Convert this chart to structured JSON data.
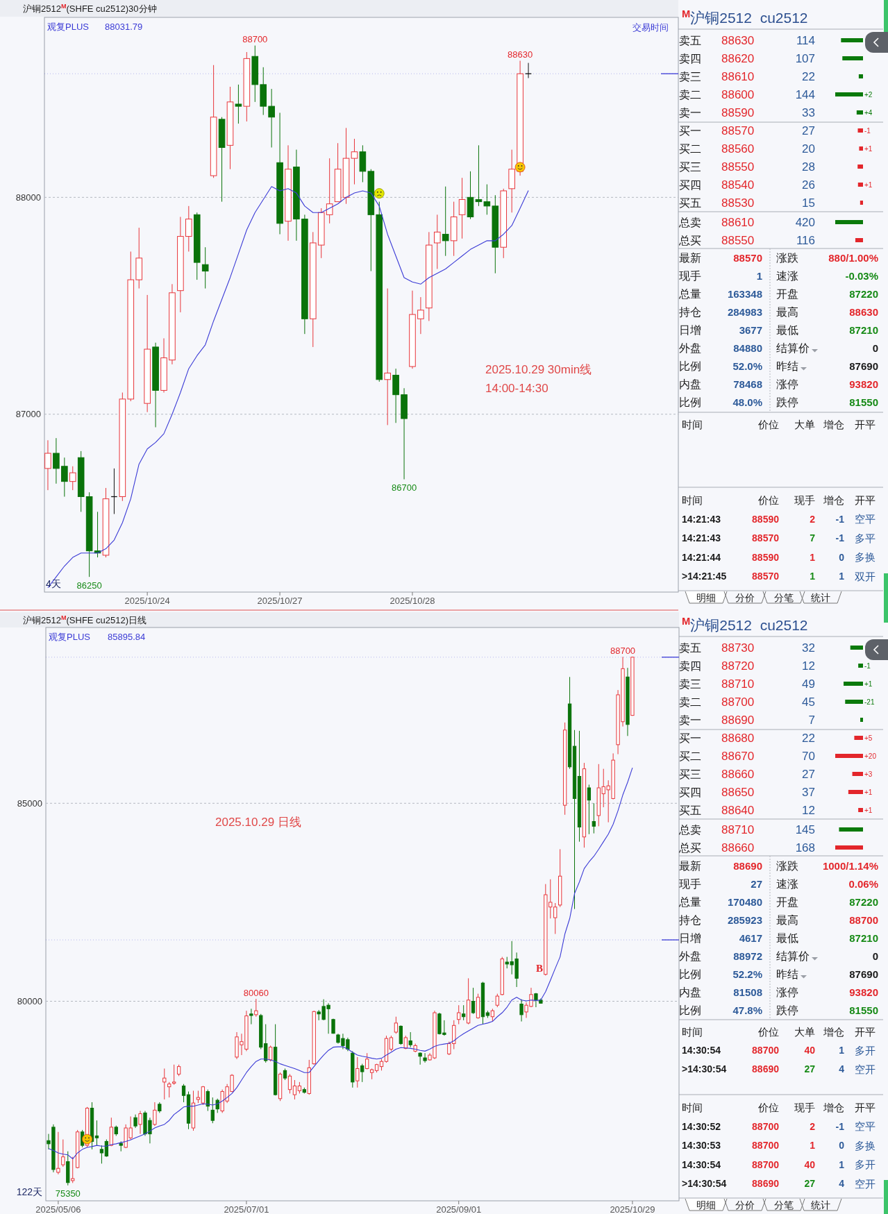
{
  "chart_data": [
    {
      "type": "candlestick",
      "title": "沪铜2512$^{M}$(SHFE cu2512)30分钟",
      "legend": "top left",
      "grid": "y",
      "ylim": [
        86180,
        88830
      ],
      "yticks": [
        87000,
        88000
      ],
      "categories": [
        null,
        null,
        null,
        null,
        null,
        null,
        null,
        null,
        null,
        null,
        null,
        null,
        "2025/10/24",
        null,
        null,
        null,
        null,
        null,
        null,
        null,
        null,
        null,
        null,
        null,
        null,
        null,
        null,
        null,
        "2025/10/27",
        null,
        null,
        null,
        null,
        null,
        null,
        null,
        null,
        null,
        null,
        null,
        null,
        null,
        null,
        null,
        "2025/10/28",
        null,
        null,
        null,
        null,
        null,
        null,
        null,
        null,
        null,
        null,
        null,
        null,
        null,
        null
      ],
      "ohlc": [
        [
          86750,
          86880,
          86650,
          86820
        ],
        [
          86820,
          86890,
          86680,
          86750
        ],
        [
          86760,
          86800,
          86620,
          86690
        ],
        [
          86690,
          86760,
          86650,
          86730
        ],
        [
          86800,
          86830,
          86550,
          86620
        ],
        [
          86620,
          86640,
          86250,
          86370
        ],
        [
          86370,
          86550,
          86340,
          86360
        ],
        [
          86350,
          86660,
          86340,
          86610
        ],
        [
          86620,
          86750,
          86540,
          86620
        ],
        [
          86620,
          87100,
          86600,
          87070
        ],
        [
          87070,
          87750,
          87060,
          87620
        ],
        [
          87620,
          87860,
          87580,
          87720
        ],
        [
          87050,
          87550,
          87010,
          87300
        ],
        [
          87310,
          87330,
          86940,
          87110
        ],
        [
          87110,
          87350,
          87100,
          87260
        ],
        [
          87250,
          87600,
          87230,
          87560
        ],
        [
          87570,
          87910,
          87470,
          87820
        ],
        [
          87820,
          87960,
          87750,
          87900
        ],
        [
          87920,
          87930,
          87620,
          87700
        ],
        [
          87690,
          87770,
          87580,
          87660
        ],
        [
          88100,
          88610,
          88090,
          88370
        ],
        [
          88360,
          88370,
          87980,
          88230
        ],
        [
          88240,
          88510,
          88130,
          88440
        ],
        [
          88430,
          88520,
          88340,
          88420
        ],
        [
          88420,
          88670,
          88350,
          88640
        ],
        [
          88650,
          88700,
          88440,
          88520
        ],
        [
          88520,
          88600,
          88380,
          88420
        ],
        [
          88420,
          88500,
          88230,
          88370
        ],
        [
          88160,
          88390,
          87830,
          87880
        ],
        [
          87890,
          88240,
          87800,
          88130
        ],
        [
          88140,
          88220,
          87800,
          87900
        ],
        [
          87900,
          87920,
          87370,
          87440
        ],
        [
          87440,
          87840,
          87310,
          87790
        ],
        [
          87780,
          87950,
          87720,
          87930
        ],
        [
          87920,
          88180,
          87880,
          87970
        ],
        [
          87980,
          88250,
          87980,
          88130
        ],
        [
          88000,
          88320,
          87970,
          88180
        ],
        [
          88180,
          88270,
          88060,
          88210
        ],
        [
          88210,
          88240,
          88070,
          88120
        ],
        [
          88120,
          88130,
          87660,
          87920
        ],
        [
          87920,
          87980,
          87150,
          87160
        ],
        [
          87160,
          87580,
          86950,
          87190
        ],
        [
          87180,
          87210,
          86960,
          87090
        ],
        [
          87090,
          87120,
          86700,
          86980
        ],
        [
          87220,
          87570,
          87210,
          87460
        ],
        [
          87440,
          87540,
          87370,
          87480
        ],
        [
          87490,
          87840,
          87430,
          87780
        ],
        [
          87790,
          87920,
          87670,
          87840
        ],
        [
          87830,
          88050,
          87730,
          87800
        ],
        [
          87800,
          87980,
          87730,
          87910
        ],
        [
          87920,
          88090,
          87810,
          87990
        ],
        [
          88000,
          88120,
          87900,
          87910
        ],
        [
          87990,
          88240,
          87960,
          87980
        ],
        [
          87980,
          88060,
          87920,
          87960
        ],
        [
          87960,
          88010,
          87650,
          87770
        ],
        [
          87770,
          88040,
          87720,
          88030
        ],
        [
          88040,
          88220,
          87930,
          88130
        ],
        [
          88120,
          88630,
          88100,
          88570
        ],
        [
          88570,
          88620,
          88550,
          88570
        ]
      ],
      "series": [
        {
          "name": "观复PLUS",
          "type": "line",
          "color": "#3b3bd6",
          "values": [
            86200,
            86250,
            86300,
            86340,
            86360,
            86360,
            86360,
            86380,
            86420,
            86500,
            86610,
            86770,
            86840,
            86870,
            86910,
            87000,
            87100,
            87210,
            87270,
            87320,
            87430,
            87530,
            87630,
            87740,
            87850,
            87930,
            87990,
            88050,
            88030,
            88040,
            88020,
            87960,
            87930,
            87930,
            87950,
            87970,
            88000,
            88020,
            88030,
            88020,
            87960,
            87830,
            87730,
            87630,
            87610,
            87600,
            87630,
            87650,
            87670,
            87700,
            87730,
            87760,
            87780,
            87800,
            87800,
            87830,
            87870,
            87950,
            88031.79
          ]
        }
      ],
      "ref_lines": [
        {
          "axis": "y",
          "value": 88570,
          "color": "#3b3bd6"
        }
      ],
      "annotations": [
        "88031.79",
        "交易时间",
        "2025.10.29 30min线\n14:00-14:30",
        "4天",
        {
          "text": "88700",
          "y": 88700
        },
        {
          "text": "88630",
          "y": 88630
        },
        {
          "text": "86700",
          "y": 86700
        },
        {
          "text": "86250",
          "y": 86250
        }
      ]
    },
    {
      "type": "bar",
      "orientation": "horizontal",
      "title": "$^{M}$沪铜2512  cu2512",
      "categories": [
        "卖五",
        "卖四",
        "卖三",
        "卖二",
        "卖一",
        "买一",
        "买二",
        "买三",
        "买四",
        "买五"
      ],
      "y2_categories": [
        "88630",
        "88620",
        "88610",
        "88600",
        "88590",
        "88570",
        "88560",
        "88550",
        "88540",
        "88530"
      ],
      "values": [
        114,
        107,
        22,
        144,
        33,
        27,
        20,
        28,
        26,
        15
      ],
      "colors": [
        "#0b7a0b",
        "#0b7a0b",
        "#0b7a0b",
        "#0b7a0b",
        "#0b7a0b",
        "#e3262b",
        "#e3262b",
        "#e3262b",
        "#e3262b",
        "#e3262b"
      ],
      "data_labels": true,
      "annotations": [
        "+2",
        "+4",
        "-1",
        "+1",
        "+1"
      ]
    },
    {
      "type": "bar",
      "orientation": "horizontal",
      "categories": [
        "总卖",
        "总买"
      ],
      "y2_categories": [
        "88610",
        "88550"
      ],
      "values": [
        420,
        116
      ],
      "colors": [
        "#0b7a0b",
        "#e3262b"
      ],
      "data_labels": true
    },
    {
      "type": "other",
      "annotations": [
        "最新",
        "88570",
        "涨跌",
        "880/1.00%",
        "现手",
        "1",
        "速涨",
        "-0.03%",
        "总量",
        "163348",
        "开盘",
        "87220",
        "持仓",
        "284983",
        "最高",
        "88630",
        "日增",
        "3677",
        "最低",
        "87210",
        "外盘",
        "84880",
        "结算价",
        "0",
        "比例",
        "52.0%",
        "昨结",
        "87690",
        "内盘",
        "78468",
        "涨停",
        "93820",
        "比例",
        "48.0%",
        "跌停",
        "81550"
      ]
    },
    {
      "type": "other",
      "annotations": [
        "时间",
        "价位",
        "大单",
        "增仓",
        "开平"
      ]
    },
    {
      "type": "other",
      "annotations": [
        "时间",
        "价位",
        "现手",
        "增仓",
        "开平",
        "14:21:43",
        "88590",
        "2",
        "-1",
        "空平",
        "14:21:43",
        "88570",
        "7",
        "-1",
        "多平",
        "14:21:44",
        "88590",
        "1",
        "0",
        "多换",
        ">14:21:45",
        "88570",
        "1",
        "1",
        "双开"
      ]
    },
    {
      "type": "other",
      "annotations": [
        "明细",
        "分价",
        "分笔",
        "统计"
      ]
    },
    {
      "type": "candlestick",
      "title": "沪铜2512$^{M}$(SHFE cu2512)日线",
      "legend": "top left",
      "grid": "y",
      "ylim": [
        74960,
        89440
      ],
      "yticks": [
        80000,
        85000
      ],
      "categories": [
        null,
        null,
        "2025/05/06",
        null,
        null,
        null,
        null,
        null,
        null,
        null,
        null,
        null,
        null,
        null,
        null,
        null,
        null,
        null,
        null,
        null,
        null,
        null,
        null,
        null,
        null,
        null,
        null,
        null,
        null,
        null,
        null,
        null,
        null,
        null,
        null,
        null,
        null,
        null,
        null,
        null,
        null,
        "2025/07/01",
        null,
        null,
        null,
        null,
        null,
        null,
        null,
        null,
        null,
        null,
        null,
        null,
        null,
        null,
        null,
        null,
        null,
        null,
        null,
        null,
        null,
        null,
        null,
        null,
        null,
        null,
        null,
        null,
        null,
        null,
        null,
        null,
        null,
        null,
        null,
        null,
        null,
        null,
        null,
        null,
        null,
        null,
        null,
        "2025/09/01",
        null,
        null,
        null,
        null,
        null,
        null,
        null,
        null,
        null,
        null,
        null,
        null,
        null,
        null,
        null,
        null,
        null,
        null,
        null,
        null,
        null,
        null,
        null,
        null,
        null,
        null,
        null,
        null,
        null,
        null,
        null,
        null,
        null,
        null,
        null,
        "2025/10/29"
      ],
      "ohlc": [
        [
          76480,
          76650,
          76260,
          76400
        ],
        [
          76820,
          76890,
          75680,
          75750
        ],
        [
          75680,
          76700,
          75630,
          75780
        ],
        [
          75870,
          76510,
          75820,
          76070
        ],
        [
          75950,
          76210,
          75350,
          75420
        ],
        [
          75470,
          76070,
          75410,
          75520
        ],
        [
          75800,
          76750,
          75780,
          76700
        ],
        [
          76700,
          76750,
          76310,
          76360
        ],
        [
          76360,
          77330,
          76310,
          77300
        ],
        [
          77300,
          77450,
          76260,
          76460
        ],
        [
          76600,
          76990,
          76360,
          76550
        ],
        [
          76260,
          76360,
          75900,
          76170
        ],
        [
          76460,
          76510,
          76070,
          76090
        ],
        [
          76360,
          77060,
          76340,
          76820
        ],
        [
          76820,
          76860,
          76600,
          76650
        ],
        [
          76410,
          76460,
          76210,
          76360
        ],
        [
          76310,
          76890,
          76290,
          76800
        ],
        [
          76550,
          77090,
          76510,
          76800
        ],
        [
          77060,
          77140,
          76800,
          76850
        ],
        [
          76890,
          77230,
          76650,
          77160
        ],
        [
          77180,
          77230,
          76600,
          76650
        ],
        [
          76990,
          77060,
          76410,
          76650
        ],
        [
          76890,
          77450,
          76850,
          77250
        ],
        [
          77400,
          77450,
          77180,
          77230
        ],
        [
          77960,
          78300,
          77520,
          78060
        ],
        [
          77840,
          77960,
          77570,
          77910
        ],
        [
          77930,
          78400,
          77890,
          77960
        ],
        [
          78160,
          78400,
          78110,
          78350
        ],
        [
          77860,
          77910,
          77450,
          77620
        ],
        [
          77640,
          77720,
          76770,
          76920
        ],
        [
          76800,
          77740,
          76730,
          77430
        ],
        [
          77520,
          77740,
          77430,
          77570
        ],
        [
          77430,
          77860,
          77380,
          77840
        ],
        [
          77720,
          77770,
          77230,
          77350
        ],
        [
          77250,
          77570,
          76920,
          76990
        ],
        [
          77500,
          77540,
          77180,
          77280
        ],
        [
          77230,
          77770,
          77180,
          77720
        ],
        [
          77480,
          77910,
          77430,
          77840
        ],
        [
          77720,
          78160,
          77710,
          78130
        ],
        [
          78590,
          79220,
          78540,
          79100
        ],
        [
          78900,
          79180,
          78640,
          78980
        ],
        [
          78790,
          79760,
          78740,
          79630
        ],
        [
          79680,
          79810,
          79420,
          79640
        ],
        [
          79660,
          80060,
          79610,
          79760
        ],
        [
          79640,
          79680,
          78790,
          78840
        ],
        [
          78930,
          79420,
          78450,
          78500
        ],
        [
          78520,
          78880,
          78480,
          78840
        ],
        [
          78840,
          79420,
          77620,
          77640
        ],
        [
          77540,
          78200,
          77480,
          78160
        ],
        [
          78250,
          78300,
          78010,
          78060
        ],
        [
          77770,
          78160,
          77670,
          78110
        ],
        [
          77640,
          78010,
          77520,
          77860
        ],
        [
          77740,
          77960,
          77670,
          77860
        ],
        [
          77770,
          77820,
          77670,
          77700
        ],
        [
          77670,
          78520,
          77640,
          78320
        ],
        [
          78420,
          79760,
          78400,
          79740
        ],
        [
          79730,
          79780,
          79520,
          79680
        ],
        [
          79870,
          80050,
          79520,
          79540
        ],
        [
          79900,
          79950,
          79180,
          79810
        ],
        [
          79540,
          79560,
          79180,
          79190
        ],
        [
          79150,
          79180,
          78930,
          78960
        ],
        [
          79060,
          79180,
          78790,
          78880
        ],
        [
          79030,
          79080,
          78740,
          78790
        ],
        [
          78690,
          78740,
          77820,
          77960
        ],
        [
          77990,
          78590,
          77820,
          78300
        ],
        [
          78370,
          78420,
          77960,
          78220
        ],
        [
          78300,
          78690,
          78280,
          78540
        ],
        [
          78200,
          78300,
          78030,
          78270
        ],
        [
          78250,
          78420,
          78200,
          78400
        ],
        [
          78350,
          78540,
          78250,
          78480
        ],
        [
          78480,
          79130,
          78450,
          79060
        ],
        [
          78790,
          79130,
          78740,
          79080
        ],
        [
          79220,
          79610,
          79180,
          79450
        ],
        [
          79370,
          79390,
          78900,
          78930
        ],
        [
          78810,
          79130,
          78790,
          79080
        ],
        [
          79000,
          79220,
          78840,
          78900
        ],
        [
          78740,
          78930,
          78710,
          78880
        ],
        [
          78690,
          78710,
          78400,
          78610
        ],
        [
          78570,
          78690,
          78450,
          78500
        ],
        [
          78520,
          78690,
          78500,
          78640
        ],
        [
          78570,
          79760,
          78540,
          79710
        ],
        [
          79680,
          79710,
          79160,
          79180
        ],
        [
          79200,
          79520,
          79130,
          79160
        ],
        [
          78670,
          78980,
          78640,
          78930
        ],
        [
          78930,
          79520,
          78790,
          79390
        ],
        [
          79540,
          79900,
          79420,
          79710
        ],
        [
          79680,
          79900,
          79520,
          79610
        ],
        [
          79450,
          80580,
          79420,
          80030
        ],
        [
          80000,
          80340,
          79680,
          79710
        ],
        [
          79580,
          80190,
          79560,
          80100
        ],
        [
          80460,
          80490,
          79420,
          79610
        ],
        [
          79710,
          79760,
          79580,
          79640
        ],
        [
          79610,
          79810,
          79490,
          79760
        ],
        [
          79900,
          80190,
          79850,
          80130
        ],
        [
          80170,
          81120,
          80150,
          81070
        ],
        [
          80990,
          81120,
          80830,
          80940
        ],
        [
          81000,
          81520,
          80680,
          80920
        ],
        [
          81070,
          81230,
          80360,
          80580
        ],
        [
          79930,
          80050,
          79490,
          79660
        ],
        [
          79730,
          79970,
          79580,
          79900
        ],
        [
          79870,
          80340,
          79850,
          80170
        ],
        [
          80190,
          80210,
          79850,
          80030
        ],
        [
          80030,
          80070,
          79950,
          79950
        ],
        [
          80680,
          82960,
          80650,
          82690
        ],
        [
          82380,
          83080,
          82090,
          82500
        ],
        [
          82110,
          82480,
          81700,
          82380
        ],
        [
          82430,
          83840,
          82380,
          83160
        ],
        [
          84950,
          87040,
          84710,
          86850
        ],
        [
          87510,
          88190,
          85870,
          85920
        ],
        [
          86440,
          86850,
          82330,
          85120
        ],
        [
          85680,
          86830,
          84030,
          84400
        ],
        [
          84150,
          86020,
          83880,
          85870
        ],
        [
          85390,
          85470,
          84220,
          85080
        ],
        [
          84540,
          85000,
          84240,
          84420
        ],
        [
          84690,
          85990,
          84420,
          85390
        ],
        [
          85240,
          85870,
          84900,
          85420
        ],
        [
          85340,
          85580,
          84520,
          85440
        ],
        [
          85120,
          86260,
          85100,
          86090
        ],
        [
          86480,
          87860,
          86240,
          87740
        ],
        [
          87060,
          88700,
          86940,
          88400
        ],
        [
          88190,
          88420,
          86700,
          86990
        ],
        [
          87220,
          88700,
          87210,
          88690
        ]
      ],
      "series": [
        {
          "name": "观复PLUS",
          "type": "line",
          "color": "#3b3bd6",
          "values": [
            76280,
            76230,
            76170,
            76140,
            76120,
            76020,
            76170,
            76260,
            76310,
            76330,
            76360,
            76340,
            76340,
            76380,
            76400,
            76430,
            76460,
            76500,
            76550,
            76600,
            76650,
            76720,
            76800,
            76850,
            76890,
            76990,
            77140,
            77230,
            77330,
            77350,
            77350,
            77380,
            77410,
            77400,
            77380,
            77410,
            77480,
            77570,
            77670,
            77820,
            78010,
            78200,
            78350,
            78480,
            78540,
            78540,
            78520,
            78480,
            78420,
            78380,
            78340,
            78300,
            78250,
            78200,
            78200,
            78350,
            78500,
            78640,
            78760,
            78840,
            78850,
            78850,
            78790,
            78710,
            78640,
            78610,
            78590,
            78560,
            78540,
            78560,
            78640,
            78710,
            78790,
            78830,
            78820,
            78810,
            78790,
            78760,
            78740,
            78790,
            78860,
            78900,
            78920,
            78940,
            79000,
            79100,
            79180,
            79250,
            79320,
            79390,
            79420,
            79450,
            79490,
            79610,
            79710,
            79850,
            80030,
            80100,
            80030,
            80010,
            80030,
            80020,
            80030,
            80240,
            80530,
            80830,
            81120,
            81700,
            82090,
            82720,
            83010,
            83350,
            83520,
            83660,
            83840,
            84030,
            84220,
            84470,
            84810,
            85210,
            85530,
            85895.84
          ]
        }
      ],
      "ref_lines": [
        {
          "axis": "y",
          "value": 88690,
          "color": "#3b3bd6"
        },
        {
          "axis": "y",
          "value": 81550,
          "color": "#3b3bd6"
        }
      ],
      "annotations": [
        "85895.84",
        "2025.10.29 日线",
        "122天",
        "B",
        {
          "text": "88700",
          "y": 88700
        },
        {
          "text": "80060",
          "y": 80060
        },
        {
          "text": "75350",
          "y": 75350
        }
      ]
    },
    {
      "type": "bar",
      "orientation": "horizontal",
      "title": "$^{M}$沪铜2512  cu2512",
      "categories": [
        "卖五",
        "卖四",
        "卖三",
        "卖二",
        "卖一",
        "买一",
        "买二",
        "买三",
        "买四",
        "买五"
      ],
      "y2_categories": [
        "88730",
        "88720",
        "88710",
        "88700",
        "88690",
        "88680",
        "88670",
        "88660",
        "88650",
        "88640"
      ],
      "values": [
        32,
        12,
        49,
        45,
        7,
        22,
        70,
        27,
        37,
        12
      ],
      "colors": [
        "#0b7a0b",
        "#0b7a0b",
        "#0b7a0b",
        "#0b7a0b",
        "#0b7a0b",
        "#e3262b",
        "#e3262b",
        "#e3262b",
        "#e3262b",
        "#e3262b"
      ],
      "data_labels": true,
      "annotations": [
        "-1",
        "+1",
        "-21",
        "+5",
        "+20",
        "+3",
        "+1",
        "+1"
      ]
    },
    {
      "type": "bar",
      "orientation": "horizontal",
      "categories": [
        "总卖",
        "总买"
      ],
      "y2_categories": [
        "88710",
        "88660"
      ],
      "values": [
        145,
        168
      ],
      "colors": [
        "#0b7a0b",
        "#e3262b"
      ],
      "data_labels": true
    },
    {
      "type": "other",
      "annotations": [
        "最新",
        "88690",
        "涨跌",
        "1000/1.14%",
        "现手",
        "27",
        "速涨",
        "0.06%",
        "总量",
        "170480",
        "开盘",
        "87220",
        "持仓",
        "285923",
        "最高",
        "88700",
        "日增",
        "4617",
        "最低",
        "87210",
        "外盘",
        "88972",
        "结算价",
        "0",
        "比例",
        "52.2%",
        "昨结",
        "87690",
        "内盘",
        "81508",
        "涨停",
        "93820",
        "比例",
        "47.8%",
        "跌停",
        "81550"
      ]
    },
    {
      "type": "other",
      "annotations": [
        "时间",
        "价位",
        "大单",
        "增仓",
        "开平",
        "14:30:54",
        "88700",
        "40",
        "1",
        "多开",
        ">14:30:54",
        "88690",
        "27",
        "4",
        "空开"
      ]
    },
    {
      "type": "other",
      "annotations": [
        "时间",
        "价位",
        "现手",
        "增仓",
        "开平",
        "14:30:52",
        "88700",
        "2",
        "-1",
        "空平",
        "14:30:53",
        "88700",
        "1",
        "0",
        "多换",
        "14:30:54",
        "88700",
        "40",
        "1",
        "多开",
        ">14:30:54",
        "88690",
        "27",
        "4",
        "空开"
      ]
    },
    {
      "type": "other",
      "annotations": [
        "明细",
        "分价",
        "分笔",
        "统计"
      ]
    }
  ]
}
